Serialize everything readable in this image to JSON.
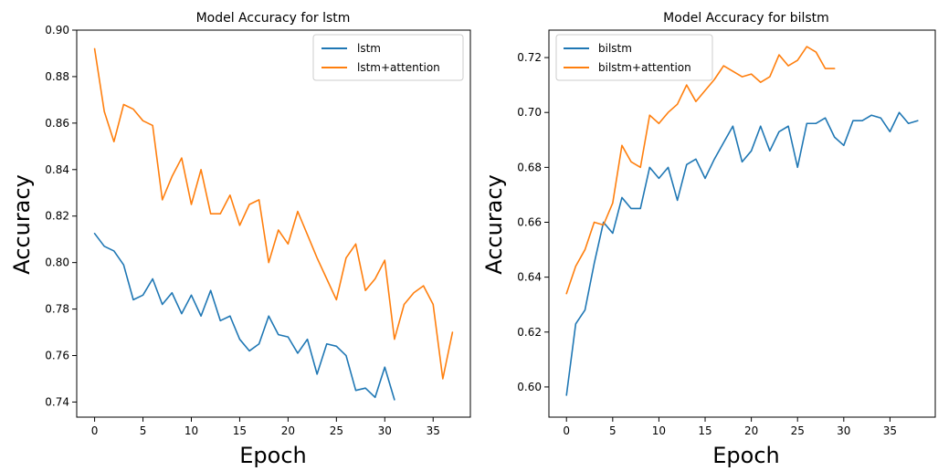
{
  "chart_data": [
    {
      "type": "line",
      "title": "Model Accuracy for lstm",
      "xlabel": "Epoch",
      "ylabel": "Accuracy",
      "xlim": [
        -1.85,
        38.85
      ],
      "ylim": [
        0.7335,
        0.9
      ],
      "xticks": [
        0,
        5,
        10,
        15,
        20,
        25,
        30,
        35
      ],
      "yticks": [
        0.74,
        0.76,
        0.78,
        0.8,
        0.82,
        0.84,
        0.86,
        0.88,
        0.9
      ],
      "yticks_labels": [
        "0.74",
        "0.76",
        "0.78",
        "0.80",
        "0.82",
        "0.84",
        "0.86",
        "0.88",
        "0.90"
      ],
      "legend_position": "top-right",
      "series": [
        {
          "name": "lstm",
          "color": "#1f77b4",
          "x": [
            0,
            1,
            2,
            3,
            4,
            5,
            6,
            7,
            8,
            9,
            10,
            11,
            12,
            13,
            14,
            15,
            16,
            17,
            18,
            19,
            20,
            21,
            22,
            23,
            24,
            25,
            26,
            27,
            28,
            29,
            30,
            31
          ],
          "values": [
            0.8125,
            0.807,
            0.805,
            0.799,
            0.784,
            0.786,
            0.793,
            0.782,
            0.787,
            0.778,
            0.786,
            0.777,
            0.788,
            0.775,
            0.777,
            0.767,
            0.762,
            0.765,
            0.777,
            0.769,
            0.768,
            0.761,
            0.767,
            0.752,
            0.765,
            0.764,
            0.76,
            0.745,
            0.746,
            0.742,
            0.755,
            0.741
          ]
        },
        {
          "name": "lstm+attention",
          "color": "#ff7f0e",
          "x": [
            0,
            1,
            2,
            3,
            4,
            5,
            6,
            7,
            8,
            9,
            10,
            11,
            12,
            13,
            14,
            15,
            16,
            17,
            18,
            19,
            20,
            21,
            22,
            23,
            24,
            25,
            26,
            27,
            28,
            29,
            30,
            31,
            32,
            33,
            34,
            35,
            36,
            37
          ],
          "values": [
            0.892,
            0.865,
            0.852,
            0.868,
            0.866,
            0.861,
            0.859,
            0.827,
            0.837,
            0.845,
            0.825,
            0.84,
            0.821,
            0.821,
            0.829,
            0.816,
            0.825,
            0.827,
            0.8,
            0.814,
            0.808,
            0.822,
            0.812,
            0.802,
            0.793,
            0.784,
            0.802,
            0.808,
            0.788,
            0.793,
            0.801,
            0.767,
            0.782,
            0.787,
            0.79,
            0.782,
            0.75,
            0.77
          ]
        }
      ]
    },
    {
      "type": "line",
      "title": "Model Accuracy for bilstm",
      "xlabel": "Epoch",
      "ylabel": "Accuracy",
      "xlim": [
        -1.9,
        39.9
      ],
      "ylim": [
        0.589,
        0.73
      ],
      "xticks": [
        0,
        5,
        10,
        15,
        20,
        25,
        30,
        35
      ],
      "yticks": [
        0.6,
        0.62,
        0.64,
        0.66,
        0.68,
        0.7,
        0.72
      ],
      "yticks_labels": [
        "0.60",
        "0.62",
        "0.64",
        "0.66",
        "0.68",
        "0.70",
        "0.72"
      ],
      "legend_position": "top-left",
      "series": [
        {
          "name": "bilstm",
          "color": "#1f77b4",
          "x": [
            0,
            1,
            2,
            3,
            4,
            5,
            6,
            7,
            8,
            9,
            10,
            11,
            12,
            13,
            14,
            15,
            16,
            17,
            18,
            19,
            20,
            21,
            22,
            23,
            24,
            25,
            26,
            27,
            28,
            29,
            30,
            31,
            32,
            33,
            34,
            35,
            36,
            37,
            38
          ],
          "values": [
            0.597,
            0.623,
            0.628,
            0.645,
            0.66,
            0.656,
            0.669,
            0.665,
            0.665,
            0.68,
            0.676,
            0.68,
            0.668,
            0.681,
            0.683,
            0.676,
            0.683,
            0.689,
            0.695,
            0.682,
            0.686,
            0.695,
            0.686,
            0.693,
            0.695,
            0.68,
            0.696,
            0.696,
            0.698,
            0.691,
            0.688,
            0.697,
            0.697,
            0.699,
            0.698,
            0.693,
            0.7,
            0.696,
            0.697
          ]
        },
        {
          "name": "bilstm+attention",
          "color": "#ff7f0e",
          "x": [
            0,
            1,
            2,
            3,
            4,
            5,
            6,
            7,
            8,
            9,
            10,
            11,
            12,
            13,
            14,
            15,
            16,
            17,
            18,
            19,
            20,
            21,
            22,
            23,
            24,
            25,
            26,
            27,
            28,
            29
          ],
          "values": [
            0.634,
            0.644,
            0.65,
            0.66,
            0.659,
            0.667,
            0.688,
            0.682,
            0.68,
            0.699,
            0.696,
            0.7,
            0.703,
            0.71,
            0.704,
            0.708,
            0.712,
            0.717,
            0.715,
            0.713,
            0.714,
            0.711,
            0.713,
            0.721,
            0.717,
            0.719,
            0.724,
            0.722,
            0.716,
            0.716
          ]
        }
      ]
    }
  ]
}
